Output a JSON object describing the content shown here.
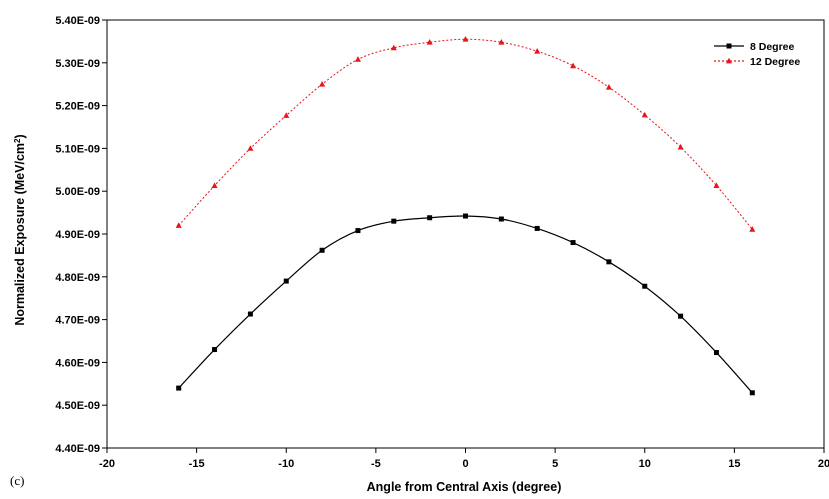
{
  "panel_label": "(c)",
  "chart_data": {
    "type": "line",
    "xlabel": "Angle from Central Axis (degree)",
    "ylabel": "Normalized Exposure (MeV/cm",
    "ylabel_sup": "2",
    "ylabel_end": ")",
    "xlim": [
      -20,
      20
    ],
    "ylim": [
      4.4e-09,
      5.4e-09
    ],
    "x_ticks": [
      -20,
      -15,
      -10,
      -5,
      0,
      5,
      10,
      15,
      20
    ],
    "y_ticks": [
      4.4e-09,
      4.5e-09,
      4.6e-09,
      4.7e-09,
      4.8e-09,
      4.9e-09,
      5e-09,
      5.1e-09,
      5.2e-09,
      5.3e-09,
      5.4e-09
    ],
    "x_tick_labels": [
      "-20",
      "-15",
      "-10",
      "-5",
      "0",
      "5",
      "10",
      "15",
      "20"
    ],
    "y_tick_labels": [
      "4.40E-09",
      "4.50E-09",
      "4.60E-09",
      "4.70E-09",
      "4.80E-09",
      "4.90E-09",
      "5.00E-09",
      "5.10E-09",
      "5.20E-09",
      "5.30E-09",
      "5.40E-09"
    ],
    "grid": false,
    "legend_position": "top-right",
    "x": [
      -16,
      -14,
      -12,
      -10,
      -8,
      -6,
      -4,
      -2,
      0,
      2,
      4,
      6,
      8,
      10,
      12,
      14,
      16
    ],
    "series": [
      {
        "name": "8 Degree",
        "color": "#000000",
        "line_style": "solid",
        "marker": "square",
        "values": [
          4.54e-09,
          4.63e-09,
          4.713e-09,
          4.79e-09,
          4.862e-09,
          4.908e-09,
          4.93e-09,
          4.938e-09,
          4.942e-09,
          4.935e-09,
          4.913e-09,
          4.88e-09,
          4.835e-09,
          4.778e-09,
          4.708e-09,
          4.623e-09,
          4.529e-09
        ]
      },
      {
        "name": "12 Degree",
        "color": "#e8141b",
        "line_style": "dotted",
        "marker": "triangle",
        "values": [
          4.92e-09,
          5.013e-09,
          5.1e-09,
          5.177e-09,
          5.25e-09,
          5.308e-09,
          5.335e-09,
          5.348e-09,
          5.355e-09,
          5.348e-09,
          5.327e-09,
          5.293e-09,
          5.243e-09,
          5.178e-09,
          5.103e-09,
          5.013e-09,
          4.911e-09
        ]
      }
    ]
  }
}
